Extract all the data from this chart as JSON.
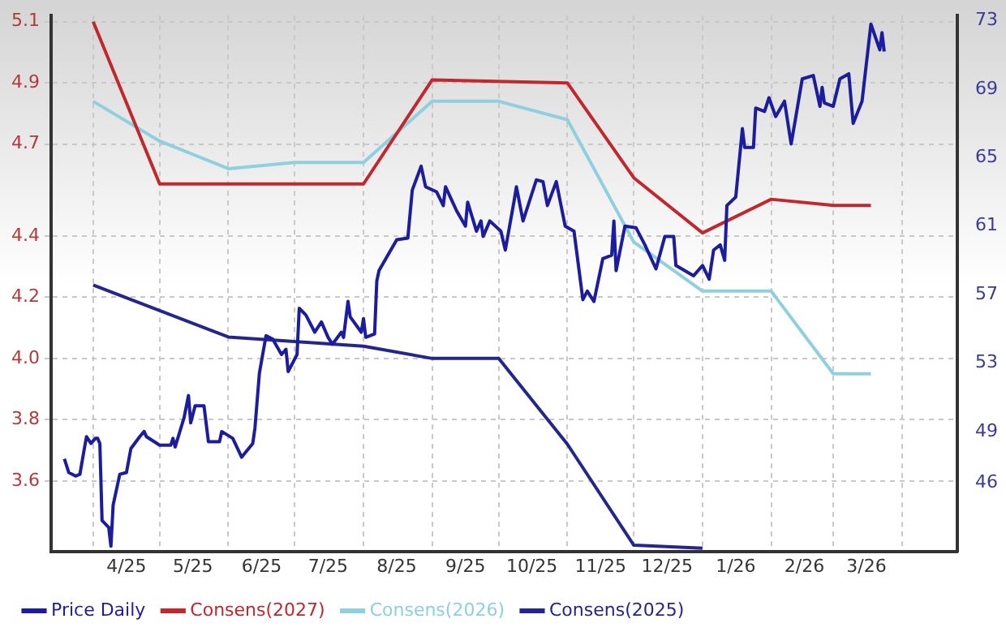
{
  "chart_data": {
    "type": "line",
    "legend": "bottom left",
    "grid": true,
    "marker": "none",
    "line_style": "solid",
    "xlim": [
      "2025-03-13",
      "2026-04-26"
    ],
    "xticks": [
      {
        "value": "2025-04-01",
        "label": null
      },
      {
        "value": "2025-04-16",
        "label": "4/25"
      },
      {
        "value": "2025-05-01",
        "label": null
      },
      {
        "value": "2025-05-16",
        "label": "5/25"
      },
      {
        "value": "2025-06-01",
        "label": null
      },
      {
        "value": "2025-06-16",
        "label": "6/25"
      },
      {
        "value": "2025-07-01",
        "label": null
      },
      {
        "value": "2025-07-16",
        "label": "7/25"
      },
      {
        "value": "2025-08-01",
        "label": null
      },
      {
        "value": "2025-08-16",
        "label": "8/25"
      },
      {
        "value": "2025-09-01",
        "label": null
      },
      {
        "value": "2025-09-16",
        "label": "9/25"
      },
      {
        "value": "2025-10-01",
        "label": null
      },
      {
        "value": "2025-10-16",
        "label": "10/25"
      },
      {
        "value": "2025-11-01",
        "label": null
      },
      {
        "value": "2025-11-16",
        "label": "11/25"
      },
      {
        "value": "2025-12-01",
        "label": null
      },
      {
        "value": "2025-12-16",
        "label": "12/25"
      },
      {
        "value": "2026-01-01",
        "label": null
      },
      {
        "value": "2026-01-16",
        "label": "1/26"
      },
      {
        "value": "2026-02-01",
        "label": null
      },
      {
        "value": "2026-02-16",
        "label": "2/26"
      },
      {
        "value": "2026-03-01",
        "label": null
      },
      {
        "value": "2026-03-16",
        "label": "3/26"
      },
      {
        "value": "2026-04-01",
        "label": null
      }
    ],
    "ylim": [
      3.37,
      5.12
    ],
    "yticks": [
      3.6,
      3.8,
      {
        "value": 4.0,
        "label": "4.0"
      },
      4.2,
      4.4,
      4.7,
      4.9,
      5.1
    ],
    "y2lim": [
      42.0,
      73.3
    ],
    "y2ticks": [
      46,
      49,
      53,
      57,
      61,
      65,
      69,
      73
    ],
    "series": [
      {
        "name": "Price Daily",
        "color": "#1c1c9e",
        "axis": "y2",
        "x": [
          "2025-03-19",
          "2025-03-21",
          "2025-03-24",
          "2025-03-26",
          "2025-03-28",
          "2025-03-29",
          "2025-03-31",
          "2025-04-02",
          "2025-04-03",
          "2025-04-04",
          "2025-04-05",
          "2025-04-08",
          "2025-04-09",
          "2025-04-10",
          "2025-04-13",
          "2025-04-16",
          "2025-04-18",
          "2025-04-22",
          "2025-04-24",
          "2025-04-25",
          "2025-05-01",
          "2025-05-06",
          "2025-05-07",
          "2025-05-08",
          "2025-05-12",
          "2025-05-14",
          "2025-05-15",
          "2025-05-17",
          "2025-05-21",
          "2025-05-23",
          "2025-05-28",
          "2025-05-29",
          "2025-06-03",
          "2025-06-07",
          "2025-06-12",
          "2025-06-13",
          "2025-06-15",
          "2025-06-18",
          "2025-06-21",
          "2025-06-25",
          "2025-06-27",
          "2025-06-28",
          "2025-07-02",
          "2025-07-03",
          "2025-07-06",
          "2025-07-10",
          "2025-07-13",
          "2025-07-16",
          "2025-07-18",
          "2025-07-22",
          "2025-07-23",
          "2025-07-25",
          "2025-07-26",
          "2025-07-31",
          "2025-08-01",
          "2025-08-02",
          "2025-08-06",
          "2025-08-07",
          "2025-08-08",
          "2025-08-16",
          "2025-08-21",
          "2025-08-23",
          "2025-08-27",
          "2025-08-29",
          "2025-09-03",
          "2025-09-06",
          "2025-09-07",
          "2025-09-12",
          "2025-09-16",
          "2025-09-17",
          "2025-09-21",
          "2025-09-23",
          "2025-09-24",
          "2025-09-27",
          "2025-10-02",
          "2025-10-04",
          "2025-10-08",
          "2025-10-09",
          "2025-10-12",
          "2025-10-18",
          "2025-10-21",
          "2025-10-23",
          "2025-10-27",
          "2025-10-31",
          "2025-11-04",
          "2025-11-08",
          "2025-11-10",
          "2025-11-13",
          "2025-11-17",
          "2025-11-21",
          "2025-11-22",
          "2025-11-23",
          "2025-11-27",
          "2025-12-02",
          "2025-12-06",
          "2025-12-11",
          "2025-12-15",
          "2025-12-19",
          "2025-12-20",
          "2025-12-28",
          "2026-01-01",
          "2026-01-04",
          "2026-01-06",
          "2026-01-09",
          "2026-01-11",
          "2026-01-12",
          "2026-01-16",
          "2026-01-19",
          "2026-01-20",
          "2026-01-24",
          "2026-01-25",
          "2026-01-29",
          "2026-01-31",
          "2026-02-03",
          "2026-02-07",
          "2026-02-10",
          "2026-02-12",
          "2026-02-15",
          "2026-02-20",
          "2026-02-23",
          "2026-02-24",
          "2026-02-25",
          "2026-03-01",
          "2026-03-04",
          "2026-03-08",
          "2026-03-10",
          "2026-03-14",
          "2026-03-18",
          "2026-03-22",
          "2026-03-23",
          "2026-03-24"
        ],
        "values": [
          47.4,
          46.6,
          46.4,
          46.5,
          48.0,
          48.7,
          48.3,
          48.6,
          48.6,
          48.3,
          43.8,
          43.4,
          42.3,
          44.7,
          46.5,
          46.6,
          48.0,
          48.7,
          49.0,
          48.7,
          48.2,
          48.2,
          48.6,
          48.1,
          49.8,
          51.1,
          49.5,
          50.5,
          50.5,
          48.4,
          48.4,
          49.0,
          48.6,
          47.5,
          48.3,
          49.2,
          52.4,
          54.6,
          54.4,
          53.5,
          53.8,
          52.5,
          53.5,
          56.2,
          55.8,
          54.8,
          55.4,
          54.5,
          54.1,
          54.8,
          54.5,
          56.6,
          55.7,
          54.8,
          55.6,
          54.5,
          54.7,
          57.8,
          58.4,
          60.2,
          60.3,
          63.1,
          64.5,
          63.3,
          63.0,
          62.2,
          63.3,
          61.9,
          61.0,
          62.4,
          60.7,
          61.3,
          60.4,
          61.3,
          60.7,
          59.6,
          62.5,
          63.3,
          61.3,
          63.7,
          63.6,
          62.2,
          63.6,
          61.0,
          60.7,
          56.7,
          57.2,
          56.6,
          59.1,
          59.3,
          61.3,
          58.4,
          61.0,
          60.9,
          59.9,
          58.5,
          60.4,
          60.4,
          58.7,
          58.1,
          58.7,
          57.9,
          59.6,
          59.9,
          59.0,
          62.2,
          62.7,
          66.7,
          65.6,
          65.6,
          67.9,
          67.7,
          68.5,
          67.4,
          68.3,
          65.8,
          67.3,
          69.6,
          69.8,
          68.0,
          69.1,
          68.2,
          68.0,
          69.6,
          69.9,
          67.0,
          68.3,
          72.8,
          71.3,
          72.3,
          71.2
        ]
      },
      {
        "name": "Consens(2027)",
        "color": "#c0282d",
        "x": [
          "2025-04-01",
          "2025-05-01",
          "2025-08-01",
          "2025-09-01",
          "2025-11-01",
          "2025-12-01",
          "2026-01-01",
          "2026-02-01",
          "2026-03-01",
          "2026-03-18"
        ],
        "values": [
          5.1,
          4.57,
          4.57,
          4.91,
          4.9,
          4.59,
          4.41,
          4.52,
          4.5,
          4.5
        ]
      },
      {
        "name": "Consens(2026)",
        "color": "#8ecfe0",
        "x": [
          "2025-04-01",
          "2025-05-01",
          "2025-06-01",
          "2025-07-01",
          "2025-08-01",
          "2025-09-01",
          "2025-10-01",
          "2025-11-01",
          "2025-12-01",
          "2026-01-01",
          "2026-02-01",
          "2026-03-01",
          "2026-03-18"
        ],
        "values": [
          4.84,
          4.71,
          4.62,
          4.64,
          4.64,
          4.84,
          4.84,
          4.78,
          4.38,
          4.22,
          4.22,
          3.95,
          3.95
        ]
      },
      {
        "name": "Consens(2025)",
        "color": "#25258f",
        "x": [
          "2025-04-01",
          "2025-06-01",
          "2025-08-01",
          "2025-09-01",
          "2025-10-01",
          "2025-11-01",
          "2025-12-01",
          "2026-01-01"
        ],
        "values": [
          4.24,
          4.07,
          4.04,
          4.0,
          4.0,
          3.72,
          3.39,
          3.38
        ]
      }
    ]
  }
}
